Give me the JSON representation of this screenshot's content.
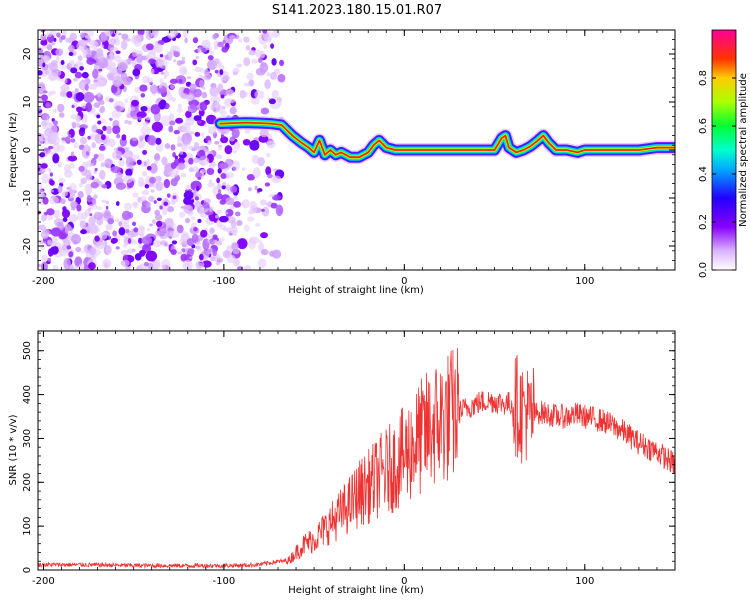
{
  "figure_title": "S141.2023.180.15.01.R07",
  "chart_data": [
    {
      "type": "heatmap",
      "title": "S141.2023.180.15.01.R07",
      "xlabel": "Height of straight line (km)",
      "ylabel": "Frequency (Hz)",
      "xlim": [
        -203,
        150
      ],
      "ylim": [
        -25,
        25
      ],
      "xticks": [
        -200,
        -100,
        0,
        100
      ],
      "xtick_labels": [
        "-200",
        "-100",
        "0",
        "100"
      ],
      "yticks": [
        -20,
        -10,
        0,
        10,
        20
      ],
      "ytick_labels": [
        "-20",
        "-10",
        "0",
        "10",
        "20"
      ],
      "grid": false,
      "noise_region_km": [
        -203,
        -78
      ],
      "ridge": {
        "description": "peak frequency trace",
        "x": [
          -102,
          -95,
          -88,
          -80,
          -74,
          -68,
          -62,
          -57,
          -53,
          -50,
          -47,
          -44,
          -41,
          -38,
          -35,
          -30,
          -25,
          -20,
          -17,
          -14,
          -10,
          -5,
          0,
          10,
          20,
          30,
          40,
          50,
          54,
          56,
          58,
          62,
          66,
          70,
          74,
          77,
          80,
          84,
          90,
          96,
          100,
          110,
          120,
          130,
          140,
          150
        ],
        "y": [
          5.5,
          5.6,
          5.7,
          5.6,
          5.5,
          5.2,
          3.0,
          1.5,
          0.5,
          -0.5,
          2.0,
          -1.0,
          0.0,
          -1.0,
          -0.5,
          -1.5,
          -1.5,
          -0.5,
          1.0,
          2.0,
          0.5,
          0.0,
          0.0,
          0.0,
          0.0,
          0.0,
          0.0,
          0.0,
          2.5,
          3.0,
          0.5,
          -0.5,
          0.0,
          0.8,
          2.0,
          3.0,
          1.5,
          0.0,
          0.0,
          -0.5,
          0.0,
          0.0,
          0.0,
          0.0,
          0.5,
          0.5
        ]
      },
      "colorbar": {
        "label": "Normalized spectral amplitude",
        "range": [
          0.0,
          1.0
        ],
        "ticks": [
          0.0,
          0.2,
          0.4,
          0.6,
          0.8
        ],
        "tick_labels": [
          "0.0",
          "0.2",
          "0.4",
          "0.6",
          "0.8"
        ],
        "colors": [
          "#ffffff",
          "#b34cff",
          "#3300ff",
          "#00ccff",
          "#00ff33",
          "#ccff00",
          "#ff0000",
          "#ff0099"
        ]
      }
    },
    {
      "type": "line",
      "title": "",
      "xlabel": "Height of straight line (km)",
      "ylabel": "SNR (10 * v/v)",
      "xlim": [
        -203,
        150
      ],
      "ylim": [
        0,
        545
      ],
      "xticks": [
        -200,
        -100,
        0,
        100
      ],
      "xtick_labels": [
        "-200",
        "-100",
        "0",
        "100"
      ],
      "yticks": [
        0,
        100,
        200,
        300,
        400,
        500
      ],
      "ytick_labels": [
        "0",
        "100",
        "200",
        "300",
        "400",
        "500"
      ],
      "grid": false,
      "series": [
        {
          "name": "SNR",
          "color": "#ee3333",
          "x": [
            -203,
            -180,
            -160,
            -140,
            -120,
            -100,
            -85,
            -78,
            -72,
            -68,
            -64,
            -60,
            -55,
            -50,
            -45,
            -40,
            -35,
            -30,
            -25,
            -20,
            -15,
            -10,
            -5,
            0,
            5,
            10,
            15,
            20,
            25,
            30,
            35,
            40,
            45,
            50,
            55,
            60,
            63,
            65,
            67,
            69,
            72,
            75,
            80,
            85,
            90,
            95,
            100,
            105,
            110,
            115,
            120,
            125,
            130,
            135,
            140,
            145,
            150
          ],
          "y": [
            12,
            12,
            11,
            10,
            10,
            10,
            11,
            14,
            18,
            20,
            22,
            40,
            60,
            70,
            90,
            110,
            130,
            150,
            175,
            190,
            210,
            225,
            240,
            260,
            285,
            305,
            325,
            340,
            350,
            360,
            370,
            380,
            385,
            385,
            380,
            380,
            375,
            360,
            370,
            345,
            355,
            360,
            355,
            350,
            350,
            355,
            350,
            345,
            340,
            330,
            320,
            305,
            290,
            280,
            270,
            255,
            240
          ]
        }
      ]
    }
  ]
}
